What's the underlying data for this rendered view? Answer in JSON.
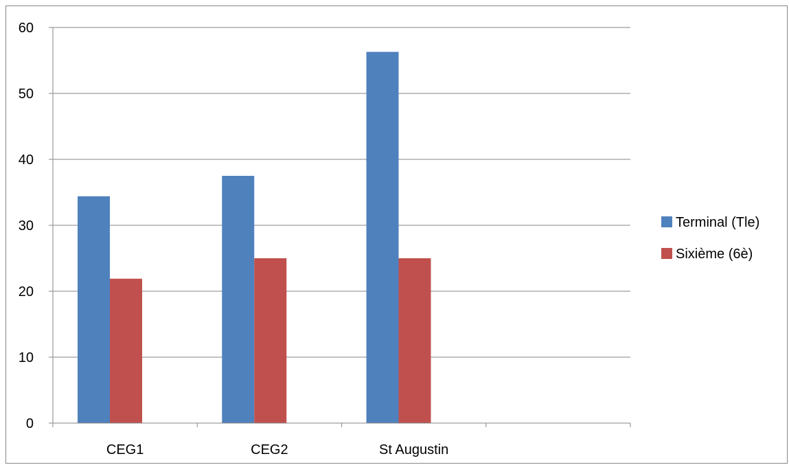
{
  "chart_data": {
    "type": "bar",
    "categories": [
      "CEG1",
      "CEG2",
      "St Augustin",
      ""
    ],
    "series": [
      {
        "name": "Terminal (Tle)",
        "values": [
          34.4,
          37.5,
          56.3,
          null
        ],
        "color": "#4F81BD"
      },
      {
        "name": "Sixième (6è)",
        "values": [
          21.9,
          25.0,
          25.0,
          null
        ],
        "color": "#C0504D"
      }
    ],
    "ylim": [
      0,
      60
    ],
    "yticks": [
      0,
      10,
      20,
      30,
      40,
      50,
      60
    ],
    "grid": true,
    "legend": "right"
  }
}
